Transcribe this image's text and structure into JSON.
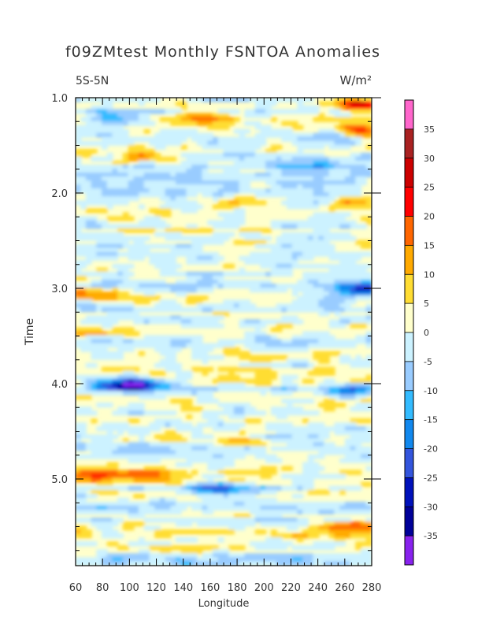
{
  "chart_data": {
    "type": "heatmap",
    "title": "f09ZMtest Monthly FSNTOA Anomalies",
    "left_label": "5S-5N",
    "units": "W/m²",
    "xlabel": "Longitude",
    "ylabel": "Time",
    "xlim": [
      60,
      280
    ],
    "ylim": [
      1.0,
      5.92
    ],
    "y_inverted": true,
    "x_ticks": [
      "60",
      "80",
      "100",
      "120",
      "140",
      "160",
      "180",
      "200",
      "220",
      "240",
      "260",
      "280"
    ],
    "y_ticks": [
      "1.0",
      "2.0",
      "3.0",
      "4.0",
      "5.0"
    ],
    "colorbar_labels": [
      "35",
      "30",
      "25",
      "20",
      "15",
      "10",
      "5",
      "0",
      "-5",
      "-10",
      "-15",
      "-20",
      "-25",
      "-30",
      "-35"
    ],
    "colorbar_colors": [
      "#ff66cc",
      "#aa2222",
      "#cc0000",
      "#ff0000",
      "#ff6600",
      "#ffaa00",
      "#ffdd33",
      "#ffffcc",
      "#ccf2ff",
      "#99ccff",
      "#33bbff",
      "#1188ee",
      "#3355dd",
      "#0011bb",
      "#000099",
      "#8822ee"
    ],
    "features": [
      {
        "lon": 106,
        "time": 4.0,
        "value": -32
      },
      {
        "lon": 85,
        "time": 4.0,
        "value": -18
      },
      {
        "lon": 272,
        "time": 1.05,
        "value": 28
      },
      {
        "lon": 270,
        "time": 1.35,
        "value": 22
      },
      {
        "lon": 255,
        "time": 1.4,
        "value": -14
      },
      {
        "lon": 273,
        "time": 3.0,
        "value": -28
      },
      {
        "lon": 160,
        "time": 5.1,
        "value": -20
      },
      {
        "lon": 200,
        "time": 5.1,
        "value": -12
      },
      {
        "lon": 105,
        "time": 4.95,
        "value": 18
      },
      {
        "lon": 70,
        "time": 4.95,
        "value": 14
      },
      {
        "lon": 265,
        "time": 4.05,
        "value": -18
      },
      {
        "lon": 260,
        "time": 2.1,
        "value": 15
      },
      {
        "lon": 175,
        "time": 2.1,
        "value": 12
      },
      {
        "lon": 65,
        "time": 3.05,
        "value": 16
      },
      {
        "lon": 150,
        "time": 1.2,
        "value": 14
      },
      {
        "lon": 90,
        "time": 1.2,
        "value": -14
      },
      {
        "lon": 250,
        "time": 3.1,
        "value": -12
      },
      {
        "lon": 175,
        "time": 4.6,
        "value": 10
      },
      {
        "lon": 260,
        "time": 5.5,
        "value": 12
      },
      {
        "lon": 110,
        "time": 1.6,
        "value": 12
      },
      {
        "lon": 70,
        "time": 3.45,
        "value": 10
      },
      {
        "lon": 235,
        "time": 1.7,
        "value": -10
      }
    ]
  }
}
